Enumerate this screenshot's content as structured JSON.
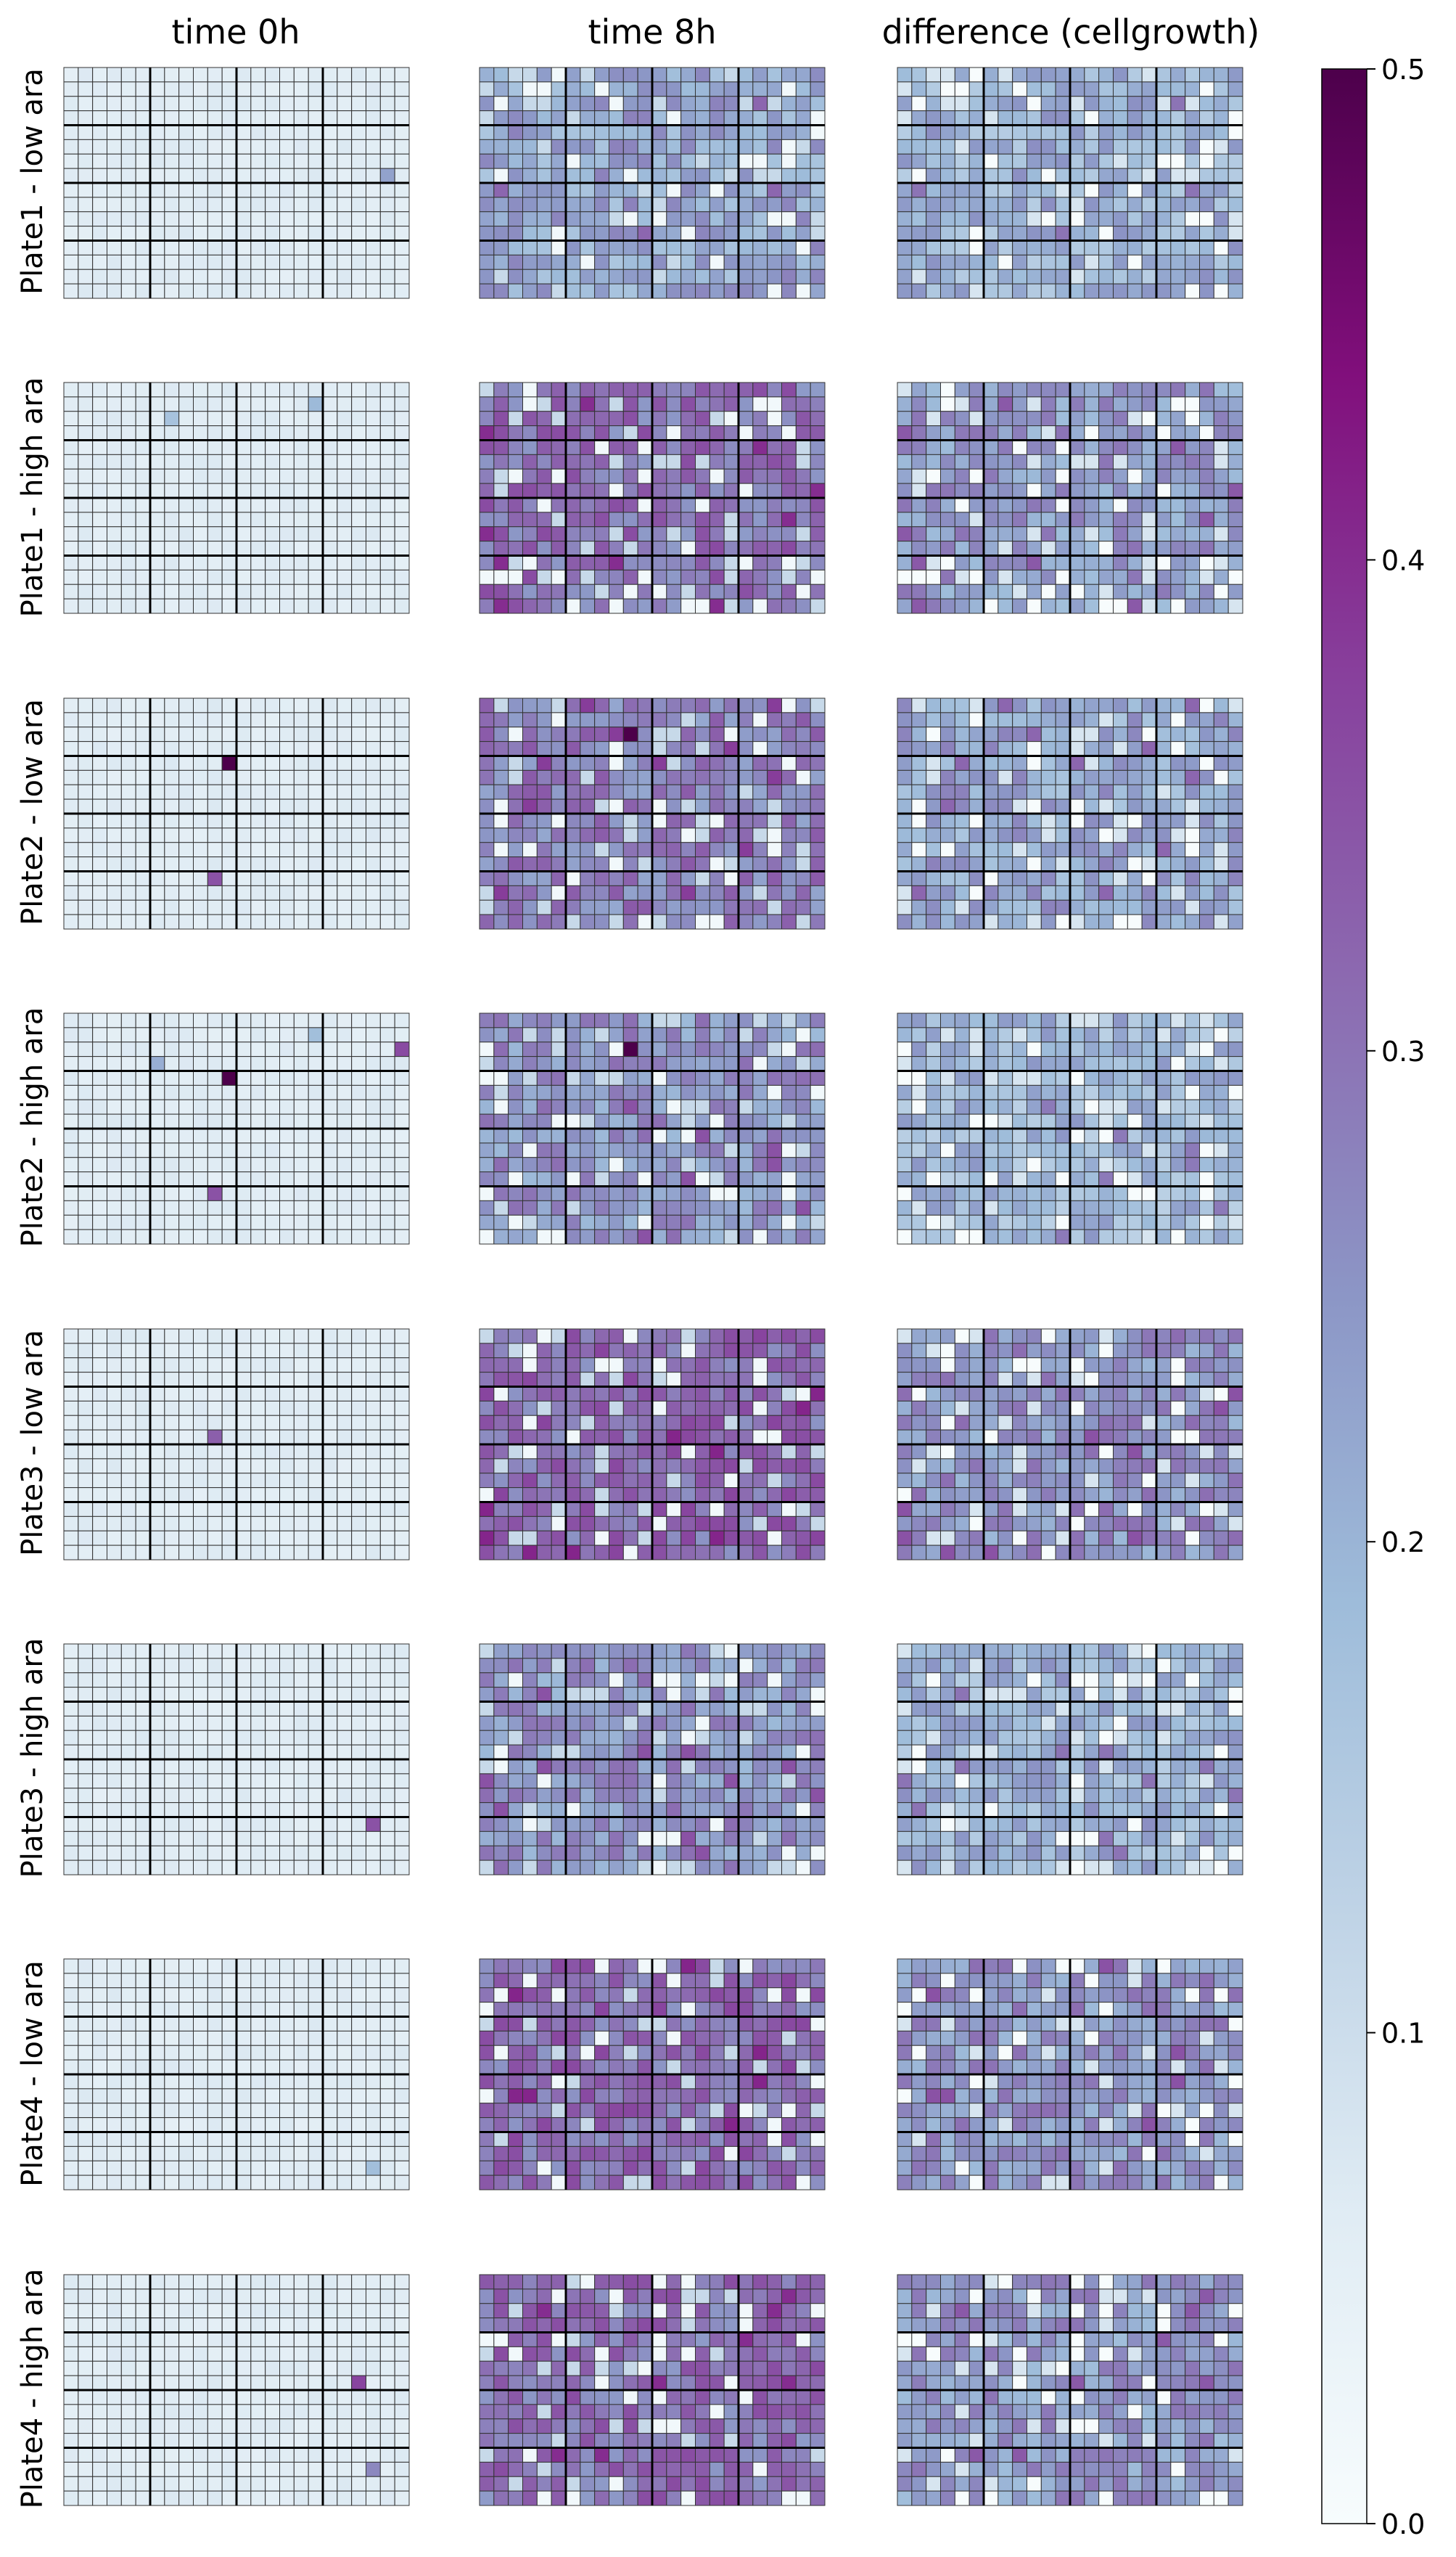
{
  "chart_data": {
    "type": "heatmap",
    "columns": [
      "time 0h",
      "time 8h",
      "difference (cellgrowth)"
    ],
    "rows": [
      "Plate1 - low ara",
      "Plate1 - high ara",
      "Plate2 - low ara",
      "Plate2 - high ara",
      "Plate3 - low ara",
      "Plate3 - high ara",
      "Plate4 - low ara",
      "Plate4 - high ara"
    ],
    "grid": {
      "n_rows": 16,
      "n_cols": 24,
      "group_rows": 4,
      "group_cols": 6
    },
    "colorbar": {
      "range": [
        0.0,
        0.5
      ],
      "ticks": [
        0.0,
        0.1,
        0.2,
        0.3,
        0.4,
        0.5
      ],
      "tick_labels": [
        "0.0",
        "0.1",
        "0.2",
        "0.3",
        "0.4",
        "0.5"
      ],
      "colormap": "BuPu"
    },
    "typical_values": {
      "time_0h": 0.06,
      "time_8h": [
        0.22,
        0.3,
        0.28,
        0.25,
        0.31,
        0.25,
        0.31,
        0.3
      ],
      "difference": [
        0.2,
        0.24,
        0.22,
        0.19,
        0.25,
        0.2,
        0.25,
        0.24
      ]
    },
    "notable_cells": [
      {
        "plate": "Plate1 - low ara",
        "column": "time 0h",
        "row": 7,
        "col": 22,
        "value": 0.23
      },
      {
        "plate": "Plate1 - high ara",
        "column": "time 0h",
        "row": 2,
        "col": 7,
        "value": 0.17
      },
      {
        "plate": "Plate1 - high ara",
        "column": "time 0h",
        "row": 1,
        "col": 17,
        "value": 0.19
      },
      {
        "plate": "Plate2 - low ara",
        "column": "time 0h",
        "row": 4,
        "col": 11,
        "value": 0.5
      },
      {
        "plate": "Plate2 - low ara",
        "column": "time 0h",
        "row": 12,
        "col": 10,
        "value": 0.35
      },
      {
        "plate": "Plate2 - high ara",
        "column": "time 0h",
        "row": 4,
        "col": 11,
        "value": 0.5
      },
      {
        "plate": "Plate2 - high ara",
        "column": "time 0h",
        "row": 12,
        "col": 10,
        "value": 0.35
      },
      {
        "plate": "Plate2 - high ara",
        "column": "time 0h",
        "row": 2,
        "col": 23,
        "value": 0.36
      },
      {
        "plate": "Plate2 - high ara",
        "column": "time 0h",
        "row": 3,
        "col": 6,
        "value": 0.21
      },
      {
        "plate": "Plate2 - high ara",
        "column": "time 0h",
        "row": 1,
        "col": 17,
        "value": 0.18
      },
      {
        "plate": "Plate3 - low ara",
        "column": "time 0h",
        "row": 7,
        "col": 10,
        "value": 0.33
      },
      {
        "plate": "Plate3 - high ara",
        "column": "time 0h",
        "row": 12,
        "col": 21,
        "value": 0.35
      },
      {
        "plate": "Plate4 - low ara",
        "column": "time 0h",
        "row": 14,
        "col": 21,
        "value": 0.18
      },
      {
        "plate": "Plate4 - high ara",
        "column": "time 0h",
        "row": 7,
        "col": 20,
        "value": 0.37
      },
      {
        "plate": "Plate4 - high ara",
        "column": "time 0h",
        "row": 13,
        "col": 21,
        "value": 0.27
      }
    ],
    "colors": {
      "grid_line": "#000000",
      "cell_border": "#333333",
      "text": "#000000",
      "background": "#ffffff"
    }
  }
}
